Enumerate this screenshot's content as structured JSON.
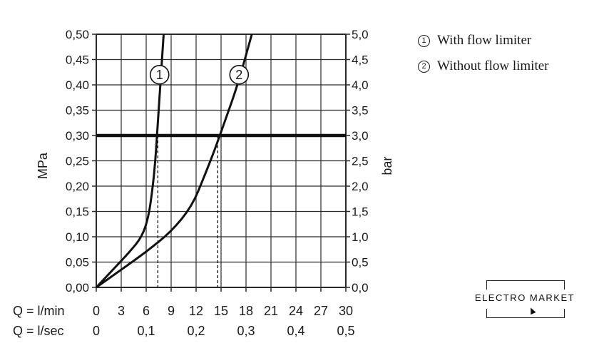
{
  "chart_data": {
    "type": "line",
    "y_left": {
      "label": "MPa",
      "ticks": [
        "0,00",
        "0,05",
        "0,10",
        "0,15",
        "0,20",
        "0,25",
        "0,30",
        "0,35",
        "0,40",
        "0,45",
        "0,50"
      ],
      "range": [
        0,
        0.5
      ]
    },
    "y_right": {
      "label": "bar",
      "ticks": [
        "0,0",
        "0,5",
        "1,0",
        "1,5",
        "2,0",
        "2,5",
        "3,0",
        "3,5",
        "4,0",
        "4,5",
        "5,0"
      ],
      "range": [
        0,
        5
      ]
    },
    "x_top": {
      "label": "Q = l/min",
      "ticks": [
        "0",
        "3",
        "6",
        "9",
        "12",
        "15",
        "18",
        "21",
        "24",
        "27",
        "30"
      ],
      "range": [
        0,
        30
      ]
    },
    "x_bottom": {
      "label": "Q = l/sec",
      "ticks": [
        "0",
        "0,1",
        "0,2",
        "0,3",
        "0,4",
        "0,5"
      ]
    },
    "grid": true,
    "reference_line": {
      "y": 0.3,
      "label": ""
    },
    "series": [
      {
        "marker": "1",
        "x": [
          0,
          2,
          4,
          5.5,
          6.3,
          6.8,
          7.1,
          7.3,
          7.5,
          7.7,
          8.1
        ],
        "y": [
          0,
          0.035,
          0.07,
          0.1,
          0.14,
          0.2,
          0.25,
          0.3,
          0.35,
          0.4,
          0.5
        ],
        "drop_line_x": 7.4
      },
      {
        "marker": "2",
        "x": [
          0,
          3,
          6,
          9,
          11.5,
          13,
          14.2,
          15.5,
          17,
          18.7
        ],
        "y": [
          0,
          0.035,
          0.07,
          0.11,
          0.16,
          0.22,
          0.27,
          0.33,
          0.4,
          0.5
        ],
        "drop_line_x": 14.6
      }
    ]
  },
  "legend": {
    "items": [
      {
        "marker": "1",
        "text": "With flow limiter"
      },
      {
        "marker": "2",
        "text": "Without flow limiter"
      }
    ]
  },
  "logo": {
    "text": "ELECTRO MARKET"
  }
}
